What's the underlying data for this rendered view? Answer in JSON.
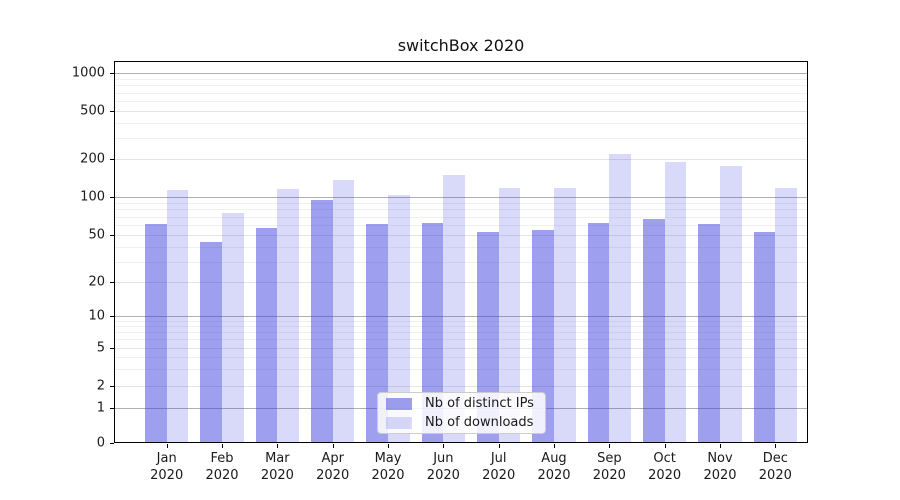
{
  "title": "switchBox 2020",
  "axes": {
    "y_tick_labels": [
      "0",
      "1",
      "2",
      "5",
      "10",
      "20",
      "50",
      "100",
      "200",
      "500",
      "1000"
    ],
    "x_month_labels": [
      "Jan",
      "Feb",
      "Mar",
      "Apr",
      "May",
      "Jun",
      "Jul",
      "Aug",
      "Sep",
      "Oct",
      "Nov",
      "Dec"
    ],
    "x_year_label": "2020"
  },
  "legend": {
    "items": [
      {
        "label": "Nb of distinct IPs",
        "color": "#a1a1ee"
      },
      {
        "label": "Nb of downloads",
        "color": "#d9d9f8"
      }
    ]
  },
  "chart_data": {
    "type": "bar",
    "title": "switchBox 2020",
    "categories": [
      "Jan 2020",
      "Feb 2020",
      "Mar 2020",
      "Apr 2020",
      "May 2020",
      "Jun 2020",
      "Jul 2020",
      "Aug 2020",
      "Sep 2020",
      "Oct 2020",
      "Nov 2020",
      "Dec 2020"
    ],
    "series": [
      {
        "name": "Nb of distinct IPs",
        "color": "#a1a1ee",
        "rgba": "rgba(60,60,222,0.49)",
        "values": [
          61,
          44,
          57,
          95,
          61,
          62,
          53,
          55,
          62,
          67,
          61,
          53
        ]
      },
      {
        "name": "Nb of downloads",
        "color": "#d9d9f8",
        "rgba": "rgba(60,60,222,0.195)",
        "values": [
          113,
          75,
          116,
          137,
          104,
          150,
          118,
          117,
          220,
          192,
          178,
          117
        ]
      }
    ],
    "xlabel": "",
    "ylabel": "",
    "yscale": "symlog",
    "y_ticks": [
      0,
      1,
      2,
      5,
      10,
      20,
      50,
      100,
      200,
      500,
      1000
    ],
    "ylim": [
      0,
      1500
    ],
    "grid": "horizontal, major and minor",
    "legend_position": "lower center"
  }
}
